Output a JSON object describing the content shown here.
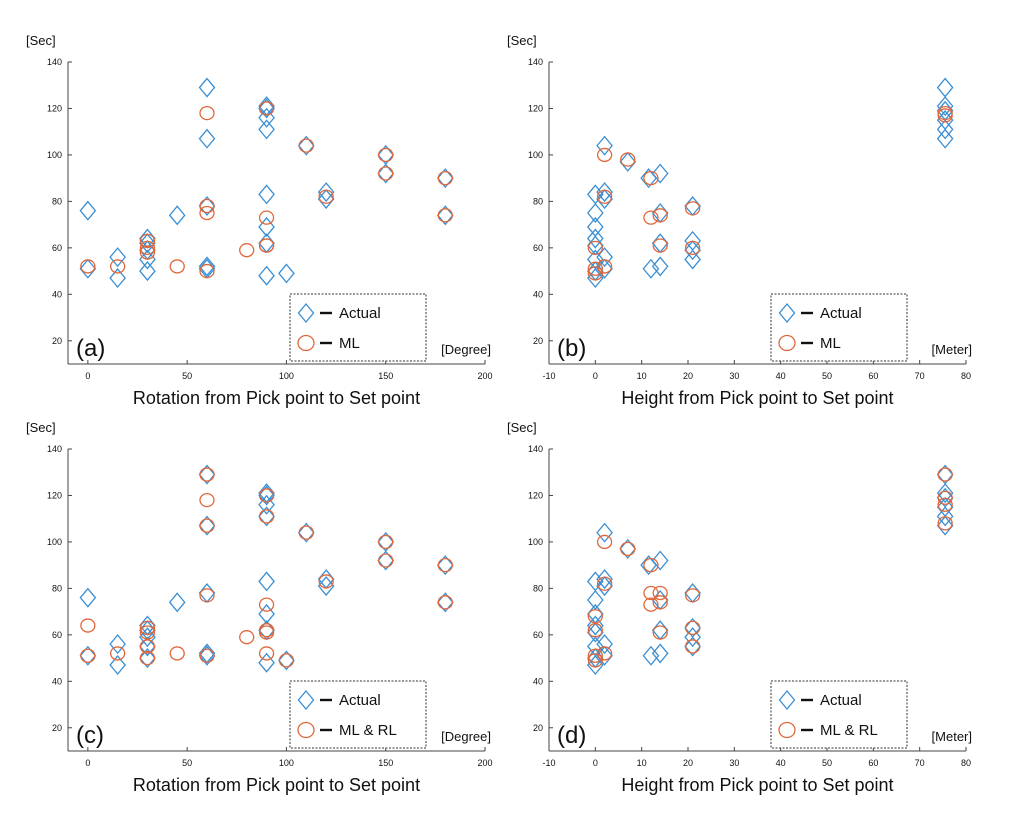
{
  "colors": {
    "actual": "#3a8fd4",
    "ml": "#e0673a",
    "axis": "#444444",
    "legend_border": "#333333"
  },
  "chart_data": [
    {
      "type": "scatter",
      "panel_label": "(a)",
      "xlabel": "Rotation from Pick point to Set point",
      "x_unit": "[Degree]",
      "ylabel": "[Sec]",
      "xlim": [
        -10,
        200
      ],
      "ylim": [
        10,
        140
      ],
      "xticks": [
        0,
        50,
        100,
        150,
        200
      ],
      "yticks": [
        20,
        40,
        60,
        80,
        100,
        120,
        140
      ],
      "legend": {
        "position": "bottom-right",
        "entries": [
          "Actual",
          "ML"
        ]
      },
      "series": [
        {
          "name": "Actual",
          "marker": "diamond",
          "x": [
            0,
            0,
            15,
            15,
            30,
            30,
            30,
            30,
            30,
            45,
            60,
            60,
            60,
            60,
            60,
            90,
            90,
            90,
            90,
            90,
            90,
            90,
            90,
            100,
            110,
            120,
            120,
            150,
            150,
            180,
            180
          ],
          "y": [
            76,
            51,
            56,
            47,
            64,
            62,
            59,
            55,
            50,
            74,
            129,
            107,
            78,
            52,
            51,
            121,
            120,
            116,
            111,
            83,
            69,
            62,
            48,
            49,
            104,
            84,
            81,
            100,
            92,
            90,
            74
          ]
        },
        {
          "name": "ML",
          "marker": "circle",
          "x": [
            0,
            15,
            30,
            30,
            30,
            45,
            60,
            60,
            60,
            60,
            80,
            90,
            90,
            90,
            90,
            110,
            120,
            150,
            150,
            180,
            180
          ],
          "y": [
            52,
            52,
            63,
            60,
            58,
            52,
            118,
            78,
            75,
            50,
            59,
            120,
            73,
            61,
            61,
            104,
            82,
            100,
            92,
            90,
            74
          ]
        }
      ]
    },
    {
      "type": "scatter",
      "panel_label": "(b)",
      "xlabel": "Height from Pick point to Set point",
      "x_unit": "[Meter]",
      "ylabel": "[Sec]",
      "xlim": [
        -10,
        80
      ],
      "ylim": [
        10,
        140
      ],
      "xticks": [
        -10,
        0,
        10,
        20,
        30,
        40,
        50,
        60,
        70,
        80
      ],
      "yticks": [
        20,
        40,
        60,
        80,
        100,
        120,
        140
      ],
      "legend": {
        "position": "bottom-right",
        "entries": [
          "Actual",
          "ML"
        ]
      },
      "series": [
        {
          "name": "Actual",
          "marker": "diamond",
          "x": [
            0,
            0,
            0,
            0,
            0,
            0,
            0,
            0,
            2,
            2,
            2,
            2,
            2,
            7,
            11.5,
            12,
            14,
            14,
            14,
            14,
            21,
            21,
            21,
            21,
            75.5,
            75.5,
            75.5,
            75.5,
            75.5,
            75.5
          ],
          "y": [
            83,
            75,
            69,
            64,
            61,
            55,
            50,
            47,
            104,
            84,
            81,
            56,
            51,
            97,
            90,
            51,
            92,
            75,
            62,
            52,
            78,
            63,
            59,
            55,
            129,
            121,
            119,
            115,
            111,
            107
          ]
        },
        {
          "name": "ML",
          "marker": "circle",
          "x": [
            0,
            0,
            0,
            2,
            2,
            2,
            7,
            12,
            12,
            14,
            14,
            21,
            21,
            75.5,
            75.5
          ],
          "y": [
            60,
            51,
            49,
            100,
            82,
            52,
            98,
            90,
            73,
            74,
            61,
            77,
            60,
            118,
            117
          ]
        }
      ]
    },
    {
      "type": "scatter",
      "panel_label": "(c)",
      "xlabel": "Rotation from Pick point to Set point",
      "x_unit": "[Degree]",
      "ylabel": "[Sec]",
      "xlim": [
        -10,
        200
      ],
      "ylim": [
        10,
        140
      ],
      "xticks": [
        0,
        50,
        100,
        150,
        200
      ],
      "yticks": [
        20,
        40,
        60,
        80,
        100,
        120,
        140
      ],
      "legend": {
        "position": "bottom-right",
        "entries": [
          "Actual",
          "ML & RL"
        ]
      },
      "series": [
        {
          "name": "Actual",
          "marker": "diamond",
          "x": [
            0,
            0,
            15,
            15,
            30,
            30,
            30,
            30,
            30,
            45,
            60,
            60,
            60,
            60,
            60,
            90,
            90,
            90,
            90,
            90,
            90,
            90,
            90,
            100,
            110,
            120,
            120,
            150,
            150,
            180,
            180
          ],
          "y": [
            76,
            51,
            56,
            47,
            64,
            62,
            59,
            55,
            50,
            74,
            129,
            107,
            78,
            52,
            51,
            121,
            120,
            116,
            111,
            83,
            69,
            62,
            48,
            49,
            104,
            84,
            81,
            100,
            92,
            90,
            74
          ]
        },
        {
          "name": "ML & RL",
          "marker": "circle",
          "x": [
            0,
            0,
            15,
            30,
            30,
            30,
            30,
            45,
            60,
            60,
            60,
            60,
            60,
            80,
            90,
            90,
            90,
            90,
            90,
            90,
            100,
            110,
            120,
            150,
            150,
            180,
            180
          ],
          "y": [
            64,
            51,
            52,
            63,
            61,
            55,
            50,
            52,
            129,
            118,
            107,
            77,
            51,
            59,
            120,
            111,
            73,
            62,
            61,
            52,
            49,
            104,
            83,
            100,
            92,
            90,
            74
          ]
        }
      ]
    },
    {
      "type": "scatter",
      "panel_label": "(d)",
      "xlabel": "Height from Pick point to Set point",
      "x_unit": "[Meter]",
      "ylabel": "[Sec]",
      "xlim": [
        -10,
        80
      ],
      "ylim": [
        10,
        140
      ],
      "xticks": [
        -10,
        0,
        10,
        20,
        30,
        40,
        50,
        60,
        70,
        80
      ],
      "yticks": [
        20,
        40,
        60,
        80,
        100,
        120,
        140
      ],
      "legend": {
        "position": "bottom-right",
        "entries": [
          "Actual",
          "ML & RL"
        ]
      },
      "series": [
        {
          "name": "Actual",
          "marker": "diamond",
          "x": [
            0,
            0,
            0,
            0,
            0,
            0,
            0,
            0,
            2,
            2,
            2,
            2,
            2,
            7,
            11.5,
            12,
            14,
            14,
            14,
            14,
            21,
            21,
            21,
            21,
            75.5,
            75.5,
            75.5,
            75.5,
            75.5,
            75.5
          ],
          "y": [
            83,
            75,
            69,
            64,
            61,
            55,
            50,
            47,
            104,
            84,
            81,
            56,
            51,
            97,
            90,
            51,
            92,
            75,
            62,
            52,
            78,
            63,
            59,
            55,
            129,
            121,
            119,
            115,
            111,
            107
          ]
        },
        {
          "name": "ML & RL",
          "marker": "circle",
          "x": [
            0,
            0,
            0,
            0,
            2,
            2,
            2,
            7,
            12,
            12,
            12,
            14,
            14,
            14,
            21,
            21,
            21,
            75.5,
            75.5,
            75.5,
            75.5
          ],
          "y": [
            68,
            62,
            51,
            49,
            100,
            82,
            52,
            97,
            90,
            78,
            73,
            78,
            74,
            61,
            77,
            63,
            55,
            129,
            119,
            116,
            108
          ]
        }
      ]
    }
  ]
}
